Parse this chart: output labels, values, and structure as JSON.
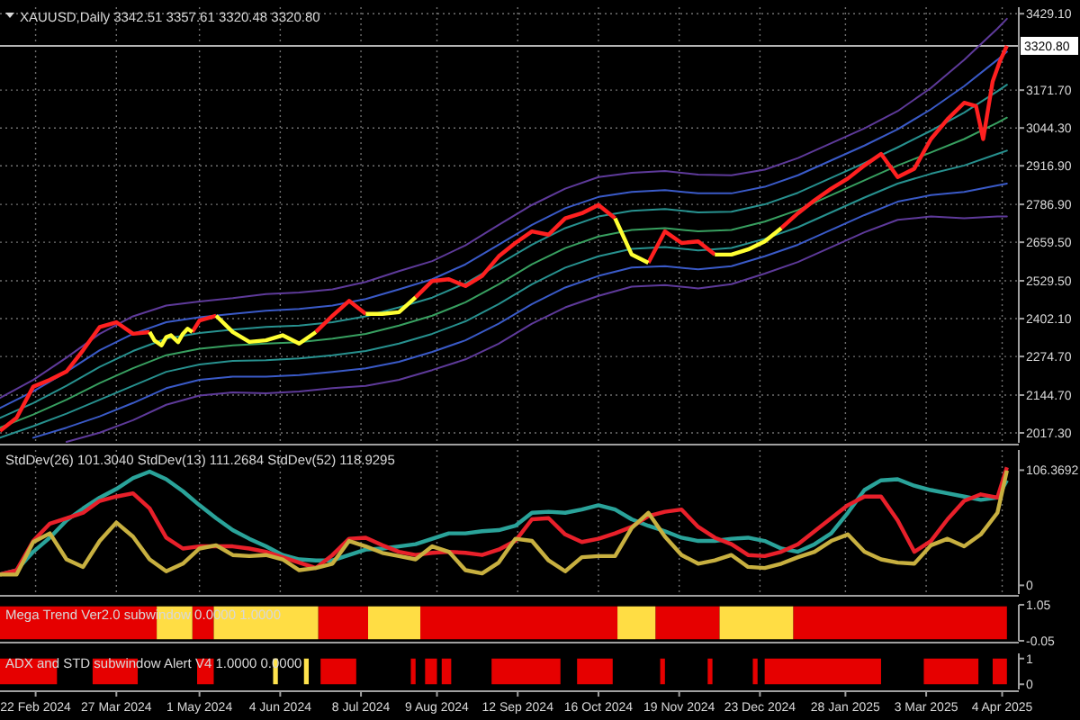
{
  "chart_data": [
    {
      "type": "line",
      "title": "XAUUSD,Daily  3342.51 3357.61 3320.48 3320.80",
      "x": [
        "2024-02-07",
        "2024-02-14",
        "2024-02-21",
        "2024-02-28",
        "2024-03-06",
        "2024-03-13",
        "2024-03-20",
        "2024-03-27",
        "2024-04-03",
        "2024-04-10",
        "2024-04-12",
        "2024-04-15",
        "2024-04-17",
        "2024-04-19",
        "2024-04-22",
        "2024-04-24",
        "2024-04-26",
        "2024-04-28",
        "2024-05-01",
        "2024-05-08",
        "2024-05-15",
        "2024-05-22",
        "2024-05-29",
        "2024-06-05",
        "2024-06-12",
        "2024-06-19",
        "2024-06-26",
        "2024-07-03",
        "2024-07-10",
        "2024-07-17",
        "2024-07-24",
        "2024-07-31",
        "2024-08-07",
        "2024-08-14",
        "2024-08-21",
        "2024-08-28",
        "2024-09-04",
        "2024-09-11",
        "2024-09-18",
        "2024-09-25",
        "2024-10-02",
        "2024-10-09",
        "2024-10-16",
        "2024-10-23",
        "2024-10-30",
        "2024-11-06",
        "2024-11-13",
        "2024-11-20",
        "2024-11-27",
        "2024-12-04",
        "2024-12-11",
        "2024-12-18",
        "2024-12-25",
        "2025-01-01",
        "2025-01-08",
        "2025-01-15",
        "2025-01-22",
        "2025-01-29",
        "2025-02-05",
        "2025-02-12",
        "2025-02-19",
        "2025-02-26",
        "2025-03-05",
        "2025-03-12",
        "2025-03-19",
        "2025-03-24",
        "2025-03-27",
        "2025-03-31",
        "2025-04-03",
        "2025-04-06"
      ],
      "series": [
        {
          "color": "#5e3a9a",
          "x": [
            "2024-02-07",
            "2024-02-21",
            "2024-03-06",
            "2024-03-20",
            "2024-04-03",
            "2024-04-17",
            "2024-05-01",
            "2024-05-15",
            "2024-05-29",
            "2024-06-12",
            "2024-06-26",
            "2024-07-10",
            "2024-07-24",
            "2024-08-07",
            "2024-08-21",
            "2024-09-04",
            "2024-09-18",
            "2024-10-02",
            "2024-10-16",
            "2024-10-30",
            "2024-11-13",
            "2024-11-27",
            "2024-12-11",
            "2024-12-25",
            "2025-01-08",
            "2025-01-22",
            "2025-02-05",
            "2025-02-19",
            "2025-03-05",
            "2025-03-19",
            "2025-04-02",
            "2025-04-06"
          ],
          "values": [
            2135,
            2196,
            2271,
            2351,
            2410,
            2446,
            2460,
            2471,
            2485,
            2490,
            2501,
            2526,
            2562,
            2596,
            2649,
            2718,
            2785,
            2840,
            2879,
            2893,
            2899,
            2887,
            2885,
            2904,
            2943,
            2993,
            3043,
            3101,
            3179,
            3274,
            3379,
            3412
          ]
        },
        {
          "color": "#3a5ac8",
          "x": [
            "2024-02-07",
            "2024-02-21",
            "2024-03-06",
            "2024-03-20",
            "2024-04-03",
            "2024-04-17",
            "2024-05-01",
            "2024-05-15",
            "2024-05-29",
            "2024-06-12",
            "2024-06-26",
            "2024-07-10",
            "2024-07-24",
            "2024-08-07",
            "2024-08-21",
            "2024-09-04",
            "2024-09-18",
            "2024-10-02",
            "2024-10-16",
            "2024-10-30",
            "2024-11-13",
            "2024-11-27",
            "2024-12-11",
            "2024-12-25",
            "2025-01-08",
            "2025-01-22",
            "2025-02-05",
            "2025-02-19",
            "2025-03-05",
            "2025-03-19",
            "2025-04-02",
            "2025-04-06"
          ],
          "values": [
            2101,
            2157,
            2223,
            2296,
            2351,
            2390,
            2407,
            2418,
            2429,
            2435,
            2446,
            2468,
            2501,
            2535,
            2585,
            2651,
            2718,
            2774,
            2812,
            2829,
            2835,
            2824,
            2824,
            2846,
            2885,
            2935,
            2985,
            3040,
            3107,
            3185,
            3274,
            3301
          ]
        },
        {
          "color": "#27918f",
          "x": [
            "2024-02-07",
            "2024-02-21",
            "2024-03-06",
            "2024-03-20",
            "2024-04-03",
            "2024-04-17",
            "2024-05-01",
            "2024-05-15",
            "2024-05-29",
            "2024-06-12",
            "2024-06-26",
            "2024-07-10",
            "2024-07-24",
            "2024-08-07",
            "2024-08-21",
            "2024-09-04",
            "2024-09-18",
            "2024-10-02",
            "2024-10-16",
            "2024-10-30",
            "2024-11-13",
            "2024-11-27",
            "2024-12-11",
            "2024-12-25",
            "2025-01-08",
            "2025-01-22",
            "2025-02-05",
            "2025-02-19",
            "2025-03-05",
            "2025-03-19",
            "2025-04-02",
            "2025-04-06"
          ],
          "values": [
            2068,
            2118,
            2176,
            2240,
            2293,
            2335,
            2354,
            2365,
            2374,
            2379,
            2390,
            2410,
            2440,
            2473,
            2521,
            2585,
            2651,
            2707,
            2746,
            2765,
            2771,
            2760,
            2762,
            2787,
            2826,
            2876,
            2926,
            2979,
            3035,
            3096,
            3168,
            3190
          ]
        },
        {
          "color": "#38a060",
          "x": [
            "2024-02-07",
            "2024-02-21",
            "2024-03-06",
            "2024-03-20",
            "2024-04-03",
            "2024-04-17",
            "2024-05-01",
            "2024-05-15",
            "2024-05-29",
            "2024-06-12",
            "2024-06-26",
            "2024-07-10",
            "2024-07-24",
            "2024-08-07",
            "2024-08-21",
            "2024-09-04",
            "2024-09-18",
            "2024-10-02",
            "2024-10-16",
            "2024-10-30",
            "2024-11-13",
            "2024-11-27",
            "2024-12-11",
            "2024-12-25",
            "2025-01-08",
            "2025-01-22",
            "2025-02-05",
            "2025-02-19",
            "2025-03-05",
            "2025-03-19",
            "2025-04-02",
            "2025-04-06"
          ],
          "values": [
            2035,
            2079,
            2129,
            2185,
            2235,
            2279,
            2301,
            2312,
            2318,
            2323,
            2335,
            2351,
            2379,
            2412,
            2457,
            2518,
            2585,
            2640,
            2679,
            2701,
            2707,
            2696,
            2701,
            2729,
            2768,
            2818,
            2868,
            2918,
            2962,
            3007,
            3062,
            3079
          ]
        },
        {
          "color": "#27918f",
          "x": [
            "2024-02-07",
            "2024-02-21",
            "2024-03-06",
            "2024-03-20",
            "2024-04-03",
            "2024-04-17",
            "2024-05-01",
            "2024-05-15",
            "2024-05-29",
            "2024-06-12",
            "2024-06-26",
            "2024-07-10",
            "2024-07-24",
            "2024-08-07",
            "2024-08-21",
            "2024-09-04",
            "2024-09-18",
            "2024-10-02",
            "2024-10-16",
            "2024-10-30",
            "2024-11-13",
            "2024-11-27",
            "2024-12-11",
            "2024-12-25",
            "2025-01-08",
            "2025-01-22",
            "2025-02-05",
            "2025-02-19",
            "2025-03-05",
            "2025-03-19",
            "2025-04-02",
            "2025-04-06"
          ],
          "values": [
            2001,
            2040,
            2082,
            2129,
            2176,
            2223,
            2248,
            2260,
            2262,
            2268,
            2279,
            2293,
            2318,
            2351,
            2393,
            2451,
            2518,
            2574,
            2612,
            2637,
            2643,
            2632,
            2640,
            2671,
            2710,
            2760,
            2810,
            2857,
            2890,
            2918,
            2957,
            2968
          ]
        },
        {
          "color": "#3a5ac8",
          "x": [
            "2024-02-21",
            "2024-03-06",
            "2024-03-20",
            "2024-04-03",
            "2024-04-17",
            "2024-05-01",
            "2024-05-15",
            "2024-05-29",
            "2024-06-12",
            "2024-06-26",
            "2024-07-10",
            "2024-07-24",
            "2024-08-07",
            "2024-08-21",
            "2024-09-04",
            "2024-09-18",
            "2024-10-02",
            "2024-10-16",
            "2024-10-30",
            "2024-11-13",
            "2024-11-27",
            "2024-12-11",
            "2024-12-25",
            "2025-01-08",
            "2025-01-22",
            "2025-02-05",
            "2025-02-19",
            "2025-03-05",
            "2025-03-19",
            "2025-04-02",
            "2025-04-06"
          ],
          "values": [
            2001,
            2035,
            2073,
            2118,
            2168,
            2196,
            2207,
            2207,
            2212,
            2223,
            2235,
            2257,
            2290,
            2329,
            2385,
            2451,
            2507,
            2546,
            2574,
            2579,
            2568,
            2579,
            2612,
            2651,
            2701,
            2751,
            2796,
            2818,
            2829,
            2851,
            2857
          ]
        },
        {
          "color": "#5e3a9a",
          "x": [
            "2024-03-06",
            "2024-03-20",
            "2024-04-03",
            "2024-04-17",
            "2024-05-01",
            "2024-05-15",
            "2024-05-29",
            "2024-06-12",
            "2024-06-26",
            "2024-07-10",
            "2024-07-24",
            "2024-08-07",
            "2024-08-21",
            "2024-09-04",
            "2024-09-18",
            "2024-10-02",
            "2024-10-16",
            "2024-10-30",
            "2024-11-13",
            "2024-11-27",
            "2024-12-11",
            "2024-12-25",
            "2025-01-08",
            "2025-01-22",
            "2025-02-05",
            "2025-02-19",
            "2025-03-05",
            "2025-03-19",
            "2025-04-02",
            "2025-04-06"
          ],
          "values": [
            1987,
            2018,
            2060,
            2112,
            2143,
            2154,
            2151,
            2157,
            2168,
            2176,
            2196,
            2229,
            2265,
            2318,
            2385,
            2440,
            2479,
            2510,
            2515,
            2504,
            2518,
            2554,
            2593,
            2643,
            2693,
            2735,
            2746,
            2740,
            2746,
            2746
          ]
        },
        {
          "color": "#ff2020",
          "values": [
            2024,
            2068,
            2173,
            2196,
            2224,
            2296,
            2374,
            2390,
            2351,
            2357,
            null,
            null,
            null,
            null,
            null,
            null,
            null,
            2357,
            2396,
            2412,
            null,
            null,
            null,
            null,
            null,
            2357,
            2412,
            2462,
            2418,
            null,
            null,
            2474,
            2529,
            2535,
            2512,
            2546,
            2612,
            2657,
            2696,
            2685,
            2740,
            2757,
            2785,
            2740,
            null,
            2590,
            2696,
            2657,
            2662,
            2618,
            null,
            null,
            null,
            2707,
            2757,
            2801,
            2840,
            2874,
            2918,
            2957,
            2879,
            2907,
            3007,
            3074,
            3129,
            3118,
            3007,
            3201,
            3268,
            3321
          ]
        },
        {
          "color": "#ffff33",
          "values": [
            null,
            null,
            null,
            null,
            null,
            null,
            null,
            null,
            null,
            2357,
            2329,
            2312,
            2340,
            2346,
            2323,
            2351,
            2368,
            2357,
            null,
            2412,
            2357,
            2324,
            2329,
            2346,
            2318,
            2357,
            null,
            null,
            2418,
            2418,
            2424,
            2474,
            null,
            null,
            null,
            null,
            null,
            null,
            null,
            null,
            null,
            null,
            null,
            2740,
            2618,
            2590,
            null,
            null,
            null,
            2618,
            2618,
            2635,
            2662,
            2707,
            null,
            null,
            null,
            null,
            null,
            null,
            null,
            null,
            null,
            null,
            null,
            null,
            null,
            null,
            null,
            null
          ]
        }
      ],
      "xlim": [
        "2024-02-07",
        "2025-04-11"
      ],
      "ylim": [
        1984,
        3451
      ],
      "xticks": [
        "2024-02-22",
        "2024-03-27",
        "2024-05-01",
        "2024-06-04",
        "2024-07-08",
        "2024-08-09",
        "2024-09-12",
        "2024-10-16",
        "2024-11-19",
        "2024-12-23",
        "2025-01-28",
        "2025-03-03",
        "2025-04-04"
      ],
      "yticks": [
        {
          "value": 3429.1,
          "label": "3429.10"
        },
        {
          "value": 3171.7,
          "label": "3171.70"
        },
        {
          "value": 3044.3,
          "label": "3044.30"
        },
        {
          "value": 2916.9,
          "label": "2916.90"
        },
        {
          "value": 2786.9,
          "label": "2786.90"
        },
        {
          "value": 2659.5,
          "label": "2659.50"
        },
        {
          "value": 2529.5,
          "label": "2529.50"
        },
        {
          "value": 2402.1,
          "label": "2402.10"
        },
        {
          "value": 2274.7,
          "label": "2274.70"
        },
        {
          "value": 2144.7,
          "label": "2144.70"
        },
        {
          "value": 2017.3,
          "label": "2017.30"
        }
      ],
      "ref_lines": [
        {
          "axis": "y",
          "value": 3320.8,
          "label": "3320.80",
          "color": "#b4b4b4"
        }
      ],
      "grid": true,
      "tick_labels": "y"
    },
    {
      "type": "line",
      "title": "StdDev(26) 101.3040 StdDev(13) 111.2684 StdDev(52) 118.9295",
      "x": [
        "2024-02-07",
        "2024-02-14",
        "2024-02-21",
        "2024-02-28",
        "2024-03-06",
        "2024-03-13",
        "2024-03-20",
        "2024-03-27",
        "2024-04-03",
        "2024-04-10",
        "2024-04-17",
        "2024-04-24",
        "2024-05-01",
        "2024-05-08",
        "2024-05-15",
        "2024-05-22",
        "2024-05-29",
        "2024-06-05",
        "2024-06-12",
        "2024-06-19",
        "2024-06-26",
        "2024-07-03",
        "2024-07-10",
        "2024-07-17",
        "2024-07-24",
        "2024-07-31",
        "2024-08-07",
        "2024-08-14",
        "2024-08-21",
        "2024-08-28",
        "2024-09-04",
        "2024-09-11",
        "2024-09-18",
        "2024-09-25",
        "2024-10-02",
        "2024-10-09",
        "2024-10-16",
        "2024-10-23",
        "2024-10-30",
        "2024-11-06",
        "2024-11-13",
        "2024-11-20",
        "2024-11-27",
        "2024-12-04",
        "2024-12-11",
        "2024-12-18",
        "2024-12-25",
        "2025-01-01",
        "2025-01-08",
        "2025-01-15",
        "2025-01-22",
        "2025-01-29",
        "2025-02-05",
        "2025-02-12",
        "2025-02-19",
        "2025-02-26",
        "2025-03-05",
        "2025-03-12",
        "2025-03-19",
        "2025-03-26",
        "2025-04-02",
        "2025-04-06"
      ],
      "series": [
        {
          "color": "#2aa39a",
          "values": [
            10,
            14,
            31,
            44,
            60,
            71,
            81,
            89,
            99,
            105,
            98,
            87,
            74,
            62,
            51,
            43,
            36,
            28,
            24,
            23,
            23,
            28,
            33,
            34,
            36,
            38,
            43,
            48,
            48,
            50,
            51,
            55,
            67,
            68,
            67,
            70,
            74,
            70,
            61,
            55,
            50,
            44,
            41,
            41,
            43,
            44,
            41,
            34,
            31,
            38,
            48,
            67,
            88,
            97,
            98,
            92,
            88,
            85,
            82,
            79,
            81,
            97
          ]
        },
        {
          "color": "#e8202a",
          "values": [
            10,
            14,
            41,
            57,
            62,
            67,
            78,
            82,
            85,
            71,
            44,
            34,
            36,
            36,
            36,
            34,
            31,
            26,
            21,
            16,
            28,
            43,
            44,
            37,
            31,
            28,
            30,
            31,
            30,
            28,
            33,
            41,
            61,
            62,
            47,
            40,
            43,
            48,
            54,
            64,
            68,
            70,
            54,
            44,
            38,
            28,
            27,
            31,
            38,
            50,
            62,
            74,
            82,
            82,
            60,
            31,
            41,
            61,
            78,
            84,
            81,
            109
          ]
        },
        {
          "color": "#c8b040",
          "values": [
            10,
            10,
            40,
            48,
            24,
            17,
            41,
            58,
            45,
            24,
            13,
            20,
            34,
            37,
            28,
            27,
            28,
            24,
            14,
            16,
            20,
            41,
            36,
            30,
            27,
            24,
            36,
            31,
            14,
            11,
            21,
            43,
            41,
            23,
            13,
            26,
            27,
            27,
            53,
            67,
            45,
            28,
            20,
            23,
            28,
            17,
            16,
            20,
            26,
            31,
            41,
            47,
            31,
            24,
            21,
            20,
            37,
            43,
            36,
            47,
            67,
            106
          ]
        }
      ],
      "xlim": [
        "2024-02-07",
        "2025-04-11"
      ],
      "ylim": [
        -8,
        125
      ],
      "xticks": [
        "2024-02-22",
        "2024-03-27",
        "2024-05-01",
        "2024-06-04",
        "2024-07-08",
        "2024-08-09",
        "2024-09-12",
        "2024-10-16",
        "2024-11-19",
        "2024-12-23",
        "2025-01-28",
        "2025-03-03",
        "2025-04-04"
      ],
      "yticks": [
        106.3692,
        0
      ],
      "grid": "x",
      "tick_labels": "y"
    },
    {
      "type": "area",
      "title": "Mega Trend Ver2.0 subwindow 0.0000 1.0000",
      "series": [
        {
          "color": "#e60000",
          "x": [
            "2024-02-07",
            "2024-04-13",
            "2024-04-20",
            "2024-04-28",
            "2024-05-07",
            "2024-05-30",
            "2024-06-20",
            "2024-07-11",
            "2024-07-20",
            "2024-08-02",
            "2024-10-24",
            "2024-11-01",
            "2024-11-09",
            "2024-12-06",
            "2024-12-20",
            "2025-01-06",
            "2025-04-06"
          ],
          "values": [
            1,
            1,
            null,
            1,
            1,
            null,
            1,
            1,
            null,
            1,
            1,
            null,
            1,
            1,
            null,
            1,
            1
          ]
        },
        {
          "color": "#ffdd44",
          "x": [
            "2024-04-13",
            "2024-04-28",
            "2024-05-02",
            "2024-05-07",
            "2024-06-20",
            "2024-06-30",
            "2024-07-11",
            "2024-08-02",
            "2024-09-15",
            "2024-10-24",
            "2024-11-09",
            "2024-11-20",
            "2024-12-06",
            "2025-01-06"
          ],
          "values": [
            1,
            1,
            null,
            1,
            1,
            null,
            1,
            1,
            null,
            1,
            1,
            null,
            1,
            1
          ]
        }
      ],
      "xlim": [
        "2024-02-07",
        "2025-04-11"
      ],
      "ylim": [
        -0.05,
        1.05
      ],
      "xticks": [
        "2024-02-22",
        "2024-03-27",
        "2024-05-01",
        "2024-06-04",
        "2024-07-08",
        "2024-08-09",
        "2024-09-12",
        "2024-10-16",
        "2024-11-19",
        "2024-12-23",
        "2025-01-28",
        "2025-03-03",
        "2025-04-04"
      ],
      "yticks": [
        1.05,
        -0.05
      ],
      "tick_labels": "y"
    },
    {
      "type": "area",
      "title": "ADX and STD subwindow Alert V4 1.0000 0.0000",
      "series": [
        {
          "color": "#e60000",
          "x": [
            "2024-02-07",
            "2024-03-02",
            "2024-03-10",
            "2024-03-17",
            "2024-04-05",
            "2024-04-20",
            "2024-04-30",
            "2024-05-07",
            "2024-06-01",
            "2024-06-21",
            "2024-07-06",
            "2024-07-20",
            "2024-07-29",
            "2024-07-31",
            "2024-08-02",
            "2024-08-04",
            "2024-08-09",
            "2024-08-10",
            "2024-08-11",
            "2024-08-15",
            "2024-08-20",
            "2024-09-01",
            "2024-09-30",
            "2024-10-03",
            "2024-10-07",
            "2024-10-22",
            "2024-11-01",
            "2024-11-11",
            "2024-11-13",
            "2024-11-20",
            "2024-12-01",
            "2024-12-03",
            "2024-12-10",
            "2024-12-20",
            "2024-12-22",
            "2024-12-23",
            "2024-12-25",
            "2025-02-12",
            "2025-02-20",
            "2025-03-02",
            "2025-03-25",
            "2025-03-28",
            "2025-03-31",
            "2025-04-06"
          ],
          "values": [
            1,
            1,
            null,
            1,
            1,
            null,
            1,
            1,
            null,
            1,
            1,
            null,
            1,
            1,
            null,
            1,
            1,
            null,
            1,
            1,
            null,
            1,
            1,
            null,
            1,
            1,
            null,
            1,
            1,
            null,
            1,
            1,
            null,
            1,
            1,
            null,
            1,
            1,
            null,
            1,
            1,
            null,
            1,
            1
          ]
        },
        {
          "color": "#ffe34d",
          "x": [
            "2024-06-01",
            "2024-06-03",
            "2024-06-08",
            "2024-06-14",
            "2024-06-16"
          ],
          "values": [
            1,
            1,
            null,
            1,
            1
          ]
        }
      ],
      "xlim": [
        "2024-02-07",
        "2025-04-11"
      ],
      "ylim": [
        -0.2,
        1.2
      ],
      "xticks": [
        {
          "value": "2024-02-22",
          "label": "22 Feb 2024"
        },
        {
          "value": "2024-03-27",
          "label": "27 Mar 2024"
        },
        {
          "value": "2024-05-01",
          "label": "1 May 2024"
        },
        {
          "value": "2024-06-04",
          "label": "4 Jun 2024"
        },
        {
          "value": "2024-07-08",
          "label": "8 Jul 2024"
        },
        {
          "value": "2024-08-09",
          "label": "9 Aug 2024"
        },
        {
          "value": "2024-09-12",
          "label": "12 Sep 2024"
        },
        {
          "value": "2024-10-16",
          "label": "16 Oct 2024"
        },
        {
          "value": "2024-11-19",
          "label": "19 Nov 2024"
        },
        {
          "value": "2024-12-23",
          "label": "23 Dec 2024"
        },
        {
          "value": "2025-01-28",
          "label": "28 Jan 2025"
        },
        {
          "value": "2025-03-03",
          "label": "3 Mar 2025"
        },
        {
          "value": "2025-04-04",
          "label": "4 Apr 2025"
        }
      ],
      "yticks": [
        1,
        0
      ]
    }
  ]
}
